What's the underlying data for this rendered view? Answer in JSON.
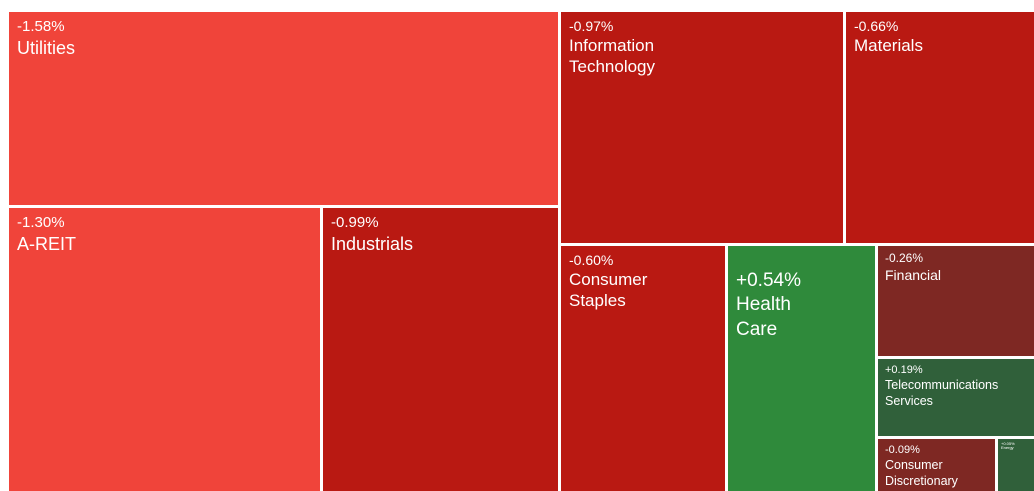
{
  "chart_data": {
    "type": "treemap",
    "sectors": [
      {
        "name": "Utilities",
        "change": "-1.58%",
        "color": "#f0443a"
      },
      {
        "name": "A-REIT",
        "change": "-1.30%",
        "color": "#f0443a"
      },
      {
        "name": "Industrials",
        "change": "-0.99%",
        "color": "#b91912"
      },
      {
        "name": "Information Technology",
        "change": "-0.97%",
        "color": "#b91912"
      },
      {
        "name": "Materials",
        "change": "-0.66%",
        "color": "#b91912"
      },
      {
        "name": "Consumer Staples",
        "change": "-0.60%",
        "color": "#b91912"
      },
      {
        "name": "Health Care",
        "change": "+0.54%",
        "color": "#2f8a3b"
      },
      {
        "name": "Financial",
        "change": "-0.26%",
        "color": "#7e2823"
      },
      {
        "name": "Telecommunications Services",
        "change": "+0.19%",
        "color": "#30603a"
      },
      {
        "name": "Consumer Discretionary",
        "change": "-0.09%",
        "color": "#7e2823"
      },
      {
        "name": "Energy",
        "change": "+0.05%",
        "color": "#30603a"
      }
    ]
  }
}
